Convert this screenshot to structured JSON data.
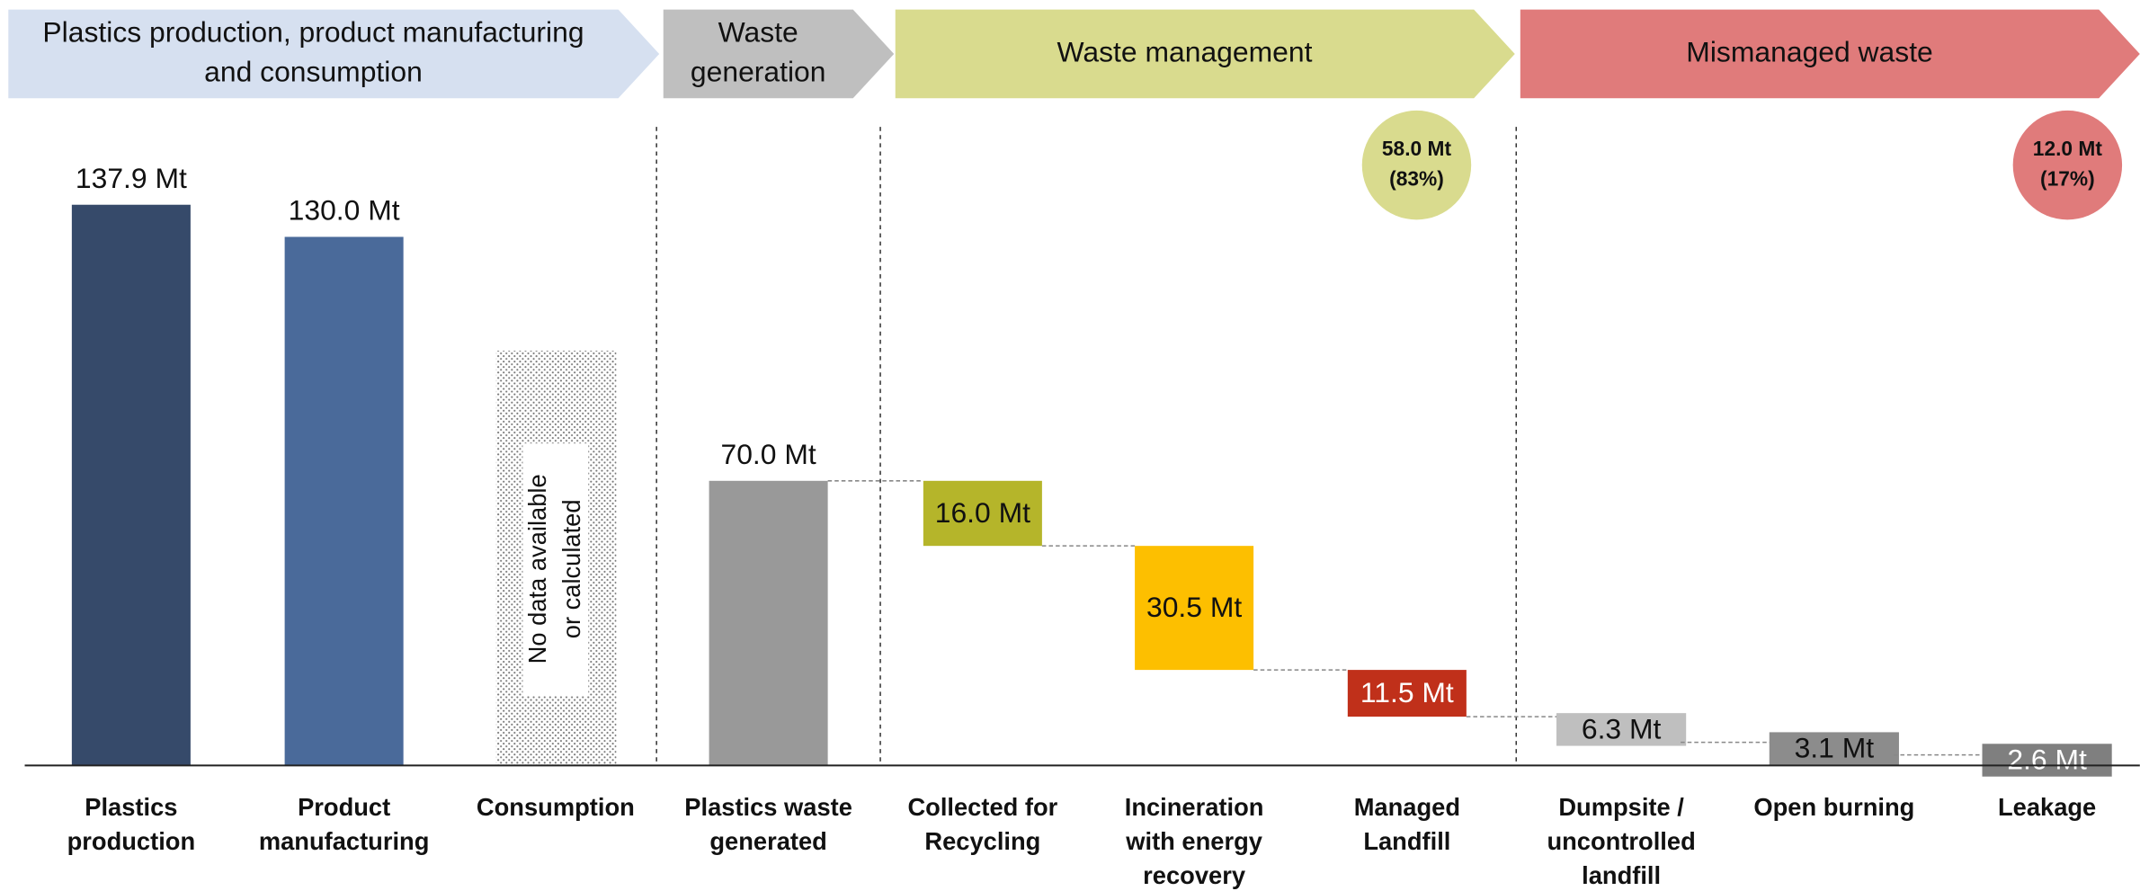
{
  "chart_data": {
    "type": "waterfall",
    "header": [
      {
        "lines": [
          "Plastics production, product manufacturing",
          "and consumption"
        ],
        "color": "#d6e0f0"
      },
      {
        "lines": [
          "Waste",
          "generation"
        ],
        "color": "#bfbfbf"
      },
      {
        "lines": [
          "Waste management"
        ],
        "color": "#d9db8e"
      },
      {
        "lines": [
          "Mismanaged waste"
        ],
        "color": "#e07b7b"
      }
    ],
    "categories": [
      [
        "Plastics",
        "production"
      ],
      [
        "Product",
        "manufacturing"
      ],
      [
        "Consumption"
      ],
      [
        "Plastics waste",
        "generated"
      ],
      [
        "Collected for",
        "Recycling"
      ],
      [
        "Incineration",
        "with energy",
        "recovery"
      ],
      [
        "Managed",
        "Landfill"
      ],
      [
        "Dumpsite /",
        "uncontrolled",
        "landfill"
      ],
      [
        "Open burning"
      ],
      [
        "Leakage"
      ]
    ],
    "values": [
      137.9,
      130.0,
      null,
      70.0,
      16.0,
      30.5,
      11.5,
      6.3,
      3.1,
      2.6
    ],
    "value_labels": [
      "137.9 Mt",
      "130.0 Mt",
      null,
      "70.0 Mt",
      "16.0 Mt",
      "30.5 Mt",
      "11.5 Mt",
      "6.3 Mt",
      "3.1 Mt",
      "2.6 Mt"
    ],
    "colors": [
      "#364a6a",
      "#4a6a9a",
      null,
      "#999999",
      "#b5b52a",
      "#fdbf00",
      "#c0301a",
      "#bfbfbf",
      "#8c8c8c",
      "#7f7f7f"
    ],
    "no_data_note": [
      "No data available",
      "or calculated"
    ],
    "annotations": [
      {
        "lines": [
          "58.0 Mt",
          "(83%)"
        ],
        "color": "#d9db8e"
      },
      {
        "lines": [
          "12.0 Mt",
          "(17%)"
        ],
        "color": "#e07b7b"
      }
    ]
  }
}
